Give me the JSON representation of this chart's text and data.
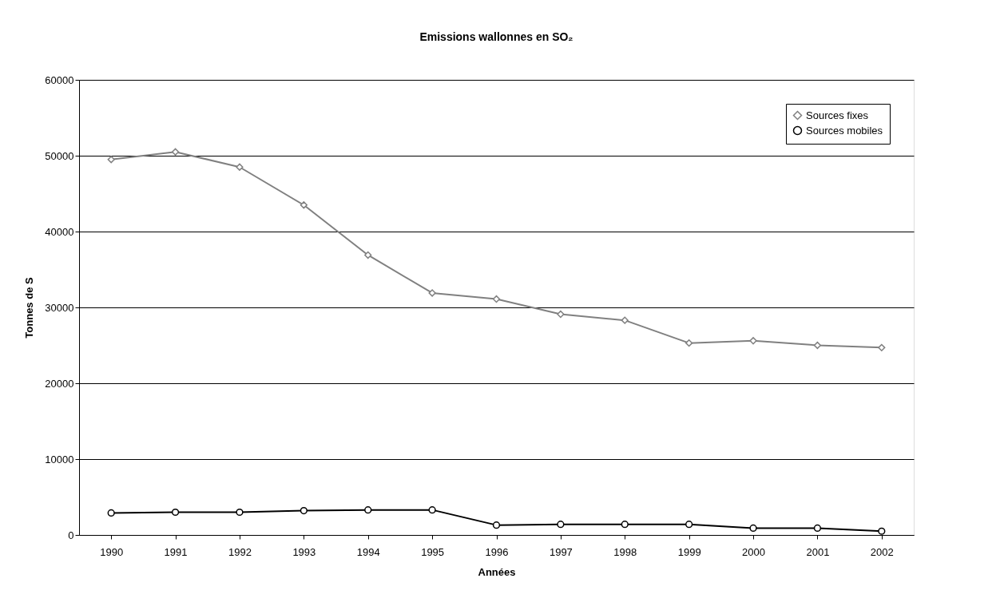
{
  "chart_data": {
    "type": "line",
    "title": "Emissions wallonnes en SO₂",
    "xlabel": "Années",
    "ylabel": "Tonnes de S",
    "categories": [
      "1990",
      "1991",
      "1992",
      "1993",
      "1994",
      "1995",
      "1996",
      "1997",
      "1998",
      "1999",
      "2000",
      "2001",
      "2002"
    ],
    "series": [
      {
        "name": "Sources fixes",
        "color": "#808080",
        "marker": "diamond",
        "values": [
          49500,
          50500,
          48500,
          43500,
          36900,
          31900,
          31100,
          29100,
          28300,
          25300,
          25600,
          25000,
          24700
        ]
      },
      {
        "name": "Sources mobiles",
        "color": "#000000",
        "marker": "circle",
        "values": [
          2900,
          3000,
          3000,
          3200,
          3300,
          3300,
          1300,
          1400,
          1400,
          1400,
          900,
          900,
          500
        ]
      }
    ],
    "ylim": [
      0,
      60000
    ],
    "yticks": [
      0,
      10000,
      20000,
      30000,
      40000,
      50000,
      60000
    ],
    "grid": "y",
    "legend": "top right",
    "line_style": "solid"
  }
}
